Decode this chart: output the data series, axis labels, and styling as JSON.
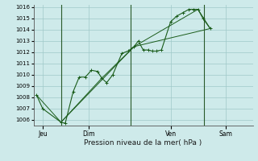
{
  "title": "Pression niveau de la mer( hPa )",
  "bg_color": "#ceeaea",
  "grid_color": "#a0c8c8",
  "line_color": "#1a5c1a",
  "ylim": [
    1005.5,
    1016.2
  ],
  "yticks": [
    1006,
    1007,
    1008,
    1009,
    1010,
    1011,
    1012,
    1013,
    1014,
    1015,
    1016
  ],
  "xlim": [
    0,
    36
  ],
  "day_positions": [
    1.5,
    9,
    22.5,
    31.5
  ],
  "day_labels": [
    "Jeu",
    "Dim",
    "Ven",
    "Sam"
  ],
  "vline_x": [
    4.5,
    16,
    28
  ],
  "series1_x": [
    0.5,
    1.5,
    4.5,
    5.2,
    6.5,
    7.5,
    8.5,
    9.5,
    10.5,
    11.2,
    12.0,
    13.0,
    14.5,
    15.5,
    16.5,
    17.2,
    18.0,
    18.8,
    19.5,
    20.2,
    21.0,
    22.5,
    23.5,
    24.5,
    25.5,
    26.2,
    27.0,
    27.8,
    29.0
  ],
  "series1_y": [
    1008.2,
    1007.0,
    1005.8,
    1005.7,
    1008.5,
    1009.8,
    1009.8,
    1010.4,
    1010.3,
    1009.7,
    1009.3,
    1010.0,
    1011.9,
    1012.1,
    1012.5,
    1013.0,
    1012.2,
    1012.2,
    1012.1,
    1012.1,
    1012.2,
    1014.7,
    1015.2,
    1015.5,
    1015.8,
    1015.8,
    1015.8,
    1015.0,
    1014.1
  ],
  "series2_x": [
    0.5,
    4.5,
    16.5,
    29.0
  ],
  "series2_y": [
    1008.2,
    1005.8,
    1012.5,
    1014.1
  ],
  "series3_x": [
    4.5,
    11.2,
    16.5,
    27.0,
    29.0
  ],
  "series3_y": [
    1005.8,
    1009.7,
    1012.5,
    1015.8,
    1014.1
  ]
}
